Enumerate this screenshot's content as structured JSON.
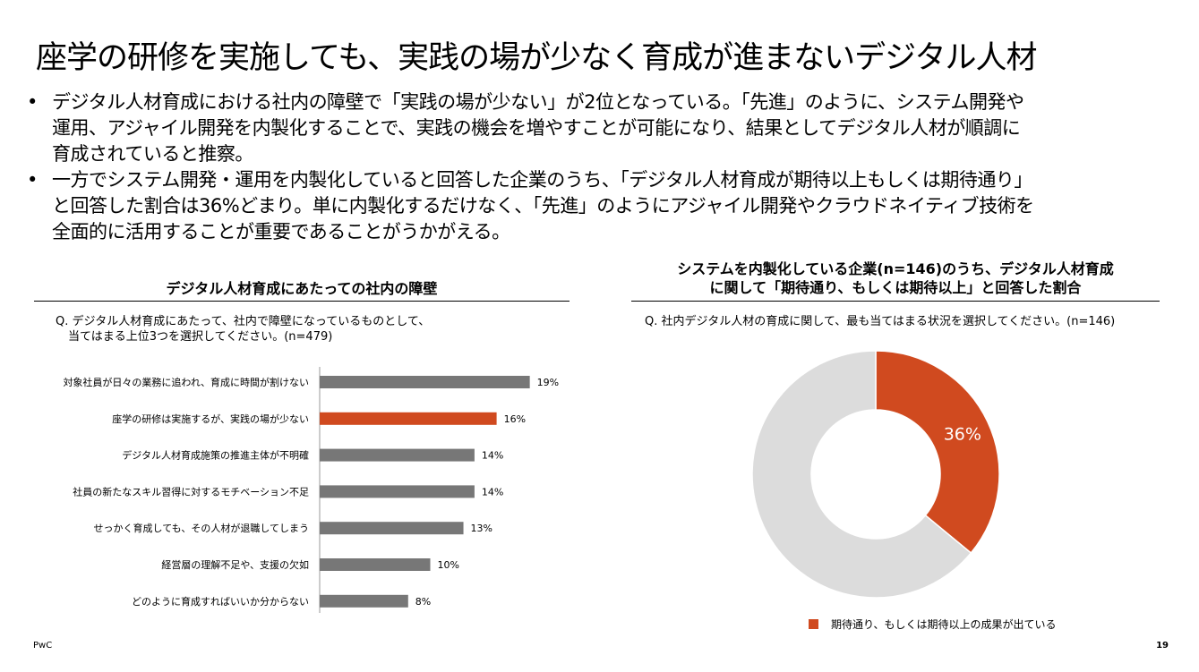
{
  "title": "座学の研修を実施しても、実践の場が少なく育成が進まないデジタル人材",
  "bullets": [
    {
      "lines": [
        "デジタル人材育成における社内の障壁で「実践の場が少ない」が2位となっている。「先進」のように、システム開発や",
        "運用、アジャイル開発を内製化することで、実践の機会を増やすことが可能になり、結果としてデジタル人材が順調に",
        "育成されていると推察。"
      ]
    },
    {
      "lines": [
        "一方でシステム開発・運用を内製化していると回答した企業のうち、「デジタル人材育成が期待以上もしくは期待通り」",
        "と回答した割合は36%どまり。単に内製化するだけなく、「先進」のようにアジャイル開発やクラウドネイティブ技術を",
        "全面的に活用することが重要であることがうかがえる。"
      ]
    }
  ],
  "bullet_mark": "•",
  "left_panel": {
    "header": "デジタル人材育成にあたっての社内の障壁",
    "question_line1": "Q. デジタル人材育成にあたって、社内で障壁になっているものとして、",
    "question_line2": "当てはまる上位3つを選択してください。(n=479)"
  },
  "right_panel": {
    "header_line1": "システムを内製化している企業(n=146)のうち、デジタル人材育成",
    "header_line2": "に関して「期待通り、もしくは期待以上」と回答した割合",
    "question": "Q. 社内デジタル人材の育成に関して、最も当てはまる状況を選択してください。(n=146)"
  },
  "colors": {
    "highlight": "#d04a1f",
    "bar": "#777777",
    "donut_rest": "#dcdcdc"
  },
  "chart_data": [
    {
      "type": "bar",
      "orientation": "horizontal",
      "categories": [
        "対象社員が日々の業務に追われ、育成に時間が割けない",
        "座学の研修は実施するが、実践の場が少ない",
        "デジタル人材育成施策の推進主体が不明確",
        "社員の新たなスキル習得に対するモチベーション不足",
        "せっかく育成しても、その人材が退職してしまう",
        "経営層の理解不足や、支援の欠如",
        "どのように育成すればいいか分からない"
      ],
      "values": [
        19,
        16,
        14,
        14,
        13,
        10,
        8
      ],
      "value_labels": [
        "19%",
        "16%",
        "14%",
        "14%",
        "13%",
        "10%",
        "8%"
      ],
      "highlight_index": 1,
      "xlim": [
        0,
        20
      ]
    },
    {
      "type": "pie",
      "donut": true,
      "slices": [
        {
          "label": "期待通り、もしくは期待以上の成果が出ている",
          "value": 36,
          "display": "36%",
          "color": "#d04a1f"
        },
        {
          "label": "",
          "value": 64,
          "display": "",
          "color": "#dcdcdc"
        }
      ],
      "legend": "期待通り、もしくは期待以上の成果が出ている",
      "legend_position": "bottom"
    }
  ],
  "footer": {
    "brand": "PwC",
    "page": "19"
  }
}
